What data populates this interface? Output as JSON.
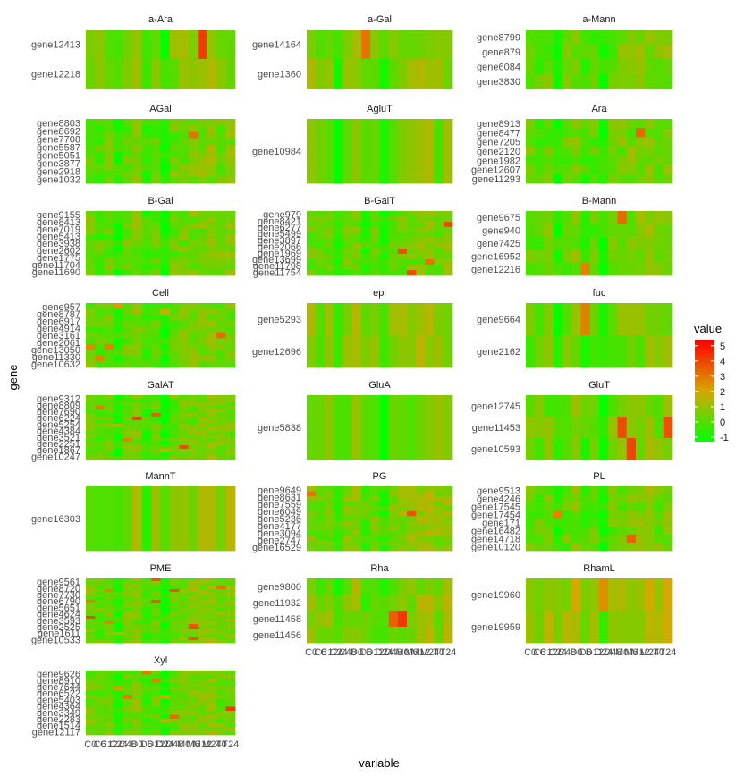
{
  "chart_data": {
    "type": "heatmap",
    "xlabel": "variable",
    "ylabel": "gene",
    "x_tick_labels": [
      "C0",
      "C6",
      "C12",
      "C24",
      "C48",
      "D0",
      "D6",
      "D12",
      "D24",
      "D48",
      "M0",
      "M6",
      "M12",
      "M24",
      "T0",
      "T24"
    ],
    "legend": {
      "title": "value",
      "min": -1.3,
      "max": 5.4,
      "ticks": [
        "5",
        "4",
        "3",
        "2",
        "1",
        "0",
        "-1"
      ],
      "color_low": "#00ff00",
      "color_mid": "#d7a800",
      "color_high": "#ff0000"
    },
    "panels": [
      {
        "title": "a-Ara",
        "labels": [
          "gene12413",
          "gene12218"
        ],
        "rows": 2,
        "seed": 1,
        "base": 0.2
      },
      {
        "title": "a-Gal",
        "labels": [
          "gene14164",
          "gene1360"
        ],
        "rows": 2,
        "seed": 2,
        "base": 0.4
      },
      {
        "title": "a-Mann",
        "labels": [
          "gene8799",
          "gene879",
          "gene6084",
          "gene3830"
        ],
        "rows": 4,
        "seed": 3,
        "base": 0.0
      },
      {
        "title": "AGal",
        "labels": [
          "gene8803",
          "gene8692",
          "gene7708",
          "gene5587",
          "gene5051",
          "gene3877",
          "gene2918",
          "gene1032"
        ],
        "rows": 10,
        "seed": 4,
        "base": 0.0
      },
      {
        "title": "AgluT",
        "labels": [
          "gene10984"
        ],
        "rows": 1,
        "seed": 5,
        "base": 0.0
      },
      {
        "title": "Ara",
        "labels": [
          "gene8913",
          "gene8477",
          "gene7205",
          "gene2120",
          "gene1982",
          "gene12607",
          "gene11293"
        ],
        "rows": 7,
        "seed": 6,
        "base": 0.0
      },
      {
        "title": "B-Gal",
        "labels": [
          "gene9155",
          "gene8413",
          "gene7019",
          "gene5413",
          "gene3938",
          "gene2602",
          "gene1775",
          "gene11704",
          "gene11690"
        ],
        "rows": 11,
        "seed": 7,
        "base": 0.0
      },
      {
        "title": "B-GalT",
        "labels": [
          "gene979",
          "gene8421",
          "gene6277",
          "gene5499",
          "gene3897",
          "gene2066",
          "gene1969",
          "gene13699",
          "gene11798",
          "gene11754"
        ],
        "rows": 12,
        "seed": 8,
        "base": 0.0
      },
      {
        "title": "B-Mann",
        "labels": [
          "gene9675",
          "gene940",
          "gene7425",
          "gene16952",
          "gene12216"
        ],
        "rows": 5,
        "seed": 9,
        "base": 0.0
      },
      {
        "title": "Cell",
        "labels": [
          "gene957",
          "gene8787",
          "gene6917",
          "gene4914",
          "gene3161",
          "gene2061",
          "gene13050",
          "gene11330",
          "gene10632"
        ],
        "rows": 11,
        "seed": 10,
        "base": 0.0
      },
      {
        "title": "epi",
        "labels": [
          "gene5293",
          "gene12696"
        ],
        "rows": 2,
        "seed": 11,
        "base": 0.5
      },
      {
        "title": "fuc",
        "labels": [
          "gene9664",
          "gene2162"
        ],
        "rows": 2,
        "seed": 12,
        "base": 0.0
      },
      {
        "title": "GalAT",
        "labels": [
          "gene9312",
          "gene8809",
          "gene7690",
          "gene6224",
          "gene5254",
          "gene4384",
          "gene3521",
          "gene2251",
          "gene1867",
          "gene10247"
        ],
        "rows": 18,
        "seed": 13,
        "base": 0.0
      },
      {
        "title": "GluA",
        "labels": [
          "gene5838"
        ],
        "rows": 1,
        "seed": 14,
        "base": 0.0
      },
      {
        "title": "GluT",
        "labels": [
          "gene12745",
          "gene11453",
          "gene10593"
        ],
        "rows": 3,
        "seed": 15,
        "base": 0.1
      },
      {
        "title": "MannT",
        "labels": [
          "gene16303"
        ],
        "rows": 1,
        "seed": 16,
        "base": 0.3
      },
      {
        "title": "PG",
        "labels": [
          "gene9649",
          "gene8631",
          "gene7559",
          "gene6049",
          "gene5236",
          "gene4177",
          "gene3094",
          "gene2747",
          "gene16529"
        ],
        "rows": 13,
        "seed": 17,
        "base": 0.3
      },
      {
        "title": "PL",
        "labels": [
          "gene9513",
          "gene4246",
          "gene17545",
          "gene17454",
          "gene171",
          "gene16482",
          "gene14718",
          "gene10120"
        ],
        "rows": 8,
        "seed": 18,
        "base": 0.0
      },
      {
        "title": "PME",
        "labels": [
          "gene9561",
          "gene8720",
          "gene7730",
          "gene6790",
          "gene5651",
          "gene4624",
          "gene3593",
          "gene2525",
          "gene1611",
          "gene10533"
        ],
        "rows": 24,
        "seed": 19,
        "base": 0.1
      },
      {
        "title": "Rha",
        "labels": [
          "gene9800",
          "gene11932",
          "gene11458",
          "gene11456"
        ],
        "rows": 4,
        "seed": 20,
        "base": 0.3
      },
      {
        "title": "RhamL",
        "labels": [
          "gene19960",
          "gene19959"
        ],
        "rows": 2,
        "seed": 21,
        "base": 0.8
      },
      {
        "title": "Xyl",
        "labels": [
          "gene9626",
          "gene8910",
          "gene7644",
          "gene6522",
          "gene5403",
          "gene4364",
          "gene3349",
          "gene2283",
          "gene1514",
          "gene12117"
        ],
        "rows": 16,
        "seed": 22,
        "base": 0.0
      }
    ]
  }
}
